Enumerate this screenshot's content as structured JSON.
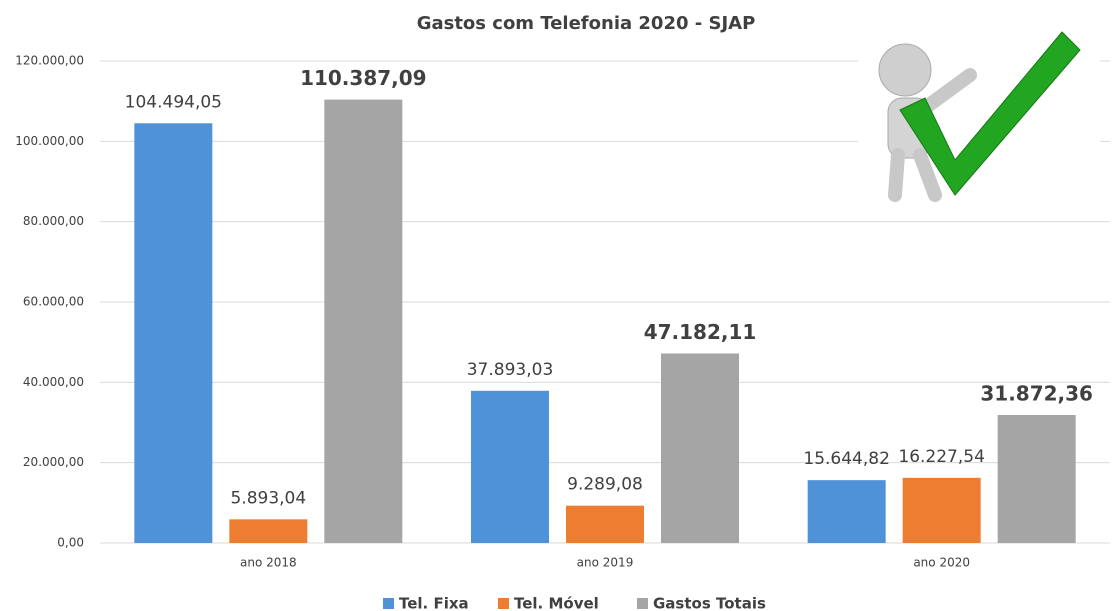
{
  "chart_data": {
    "type": "bar",
    "title": "Gastos com Telefonia 2020 - SJAP",
    "categories": [
      "ano 2018",
      "ano 2019",
      "ano 2020"
    ],
    "series": [
      {
        "name": "Tel. Fixa",
        "color": "#4f92d8",
        "values": [
          104494.05,
          37893.03,
          15644.82
        ],
        "value_labels": [
          "104.494,05",
          "37.893,03",
          "15.644,82"
        ]
      },
      {
        "name": "Tel. Móvel",
        "color": "#ed7d31",
        "values": [
          5893.04,
          9289.08,
          16227.54
        ],
        "value_labels": [
          "5.893,04",
          "9.289,08",
          "16.227,54"
        ]
      },
      {
        "name": "Gastos Totais",
        "color": "#a5a5a5",
        "values": [
          110387.09,
          47182.11,
          31872.36
        ],
        "value_labels": [
          "110.387,09",
          "47.182,11",
          "31.872,36"
        ]
      }
    ],
    "ylim": [
      0,
      120000
    ],
    "yticks": [
      {
        "value": 0,
        "label": "0,00"
      },
      {
        "value": 20000,
        "label": "20.000,00"
      },
      {
        "value": 40000,
        "label": "40.000,00"
      },
      {
        "value": 60000,
        "label": "60.000,00"
      },
      {
        "value": 80000,
        "label": "80.000,00"
      },
      {
        "value": 100000,
        "label": "100.000,00"
      },
      {
        "value": 120000,
        "label": "120.000,00"
      }
    ],
    "grid": true
  }
}
